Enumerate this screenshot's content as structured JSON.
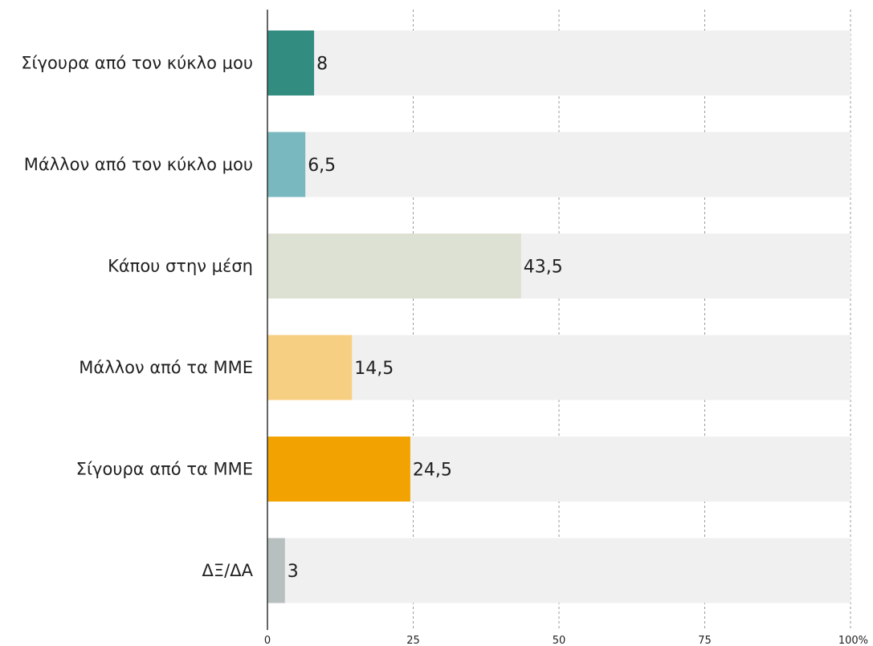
{
  "chart_data": {
    "type": "bar",
    "orientation": "horizontal",
    "title": "",
    "xlabel": "",
    "ylabel": "",
    "categories": [
      "Σίγουρα από τον κύκλο μου",
      "Μάλλον από τον κύκλο μου",
      "Κάπου στην μέση",
      "Μάλλον από τα ΜΜΕ",
      "Σίγουρα από τα ΜΜΕ",
      "ΔΞ/ΔΑ"
    ],
    "values": [
      8,
      6.5,
      43.5,
      14.5,
      24.5,
      3
    ],
    "value_labels": [
      "8",
      "6,5",
      "43,5",
      "14,5",
      "24,5",
      "3"
    ],
    "colors": [
      "#338c80",
      "#78b8be",
      "#dde1d4",
      "#f7cf82",
      "#f2a302",
      "#b8c0bf"
    ],
    "background_bar_color": "#f0f0f0",
    "xlim": [
      0,
      100
    ],
    "x_ticks": [
      0,
      25,
      50,
      75,
      100
    ],
    "x_tick_labels": [
      "0",
      "25",
      "50",
      "75",
      "100%"
    ],
    "grid": true,
    "legend": "none"
  }
}
